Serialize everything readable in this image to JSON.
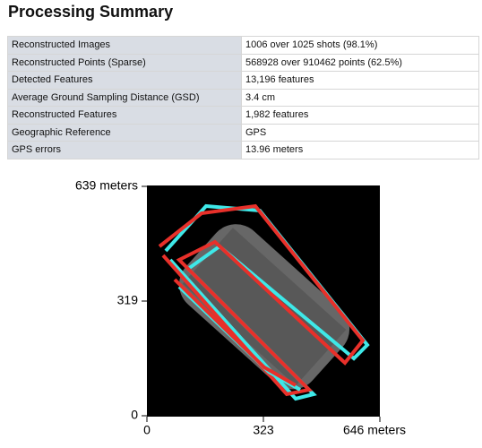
{
  "header": {
    "title": "Processing Summary"
  },
  "table": {
    "rows": [
      [
        "Reconstructed Images",
        "1006 over 1025 shots (98.1%)"
      ],
      [
        "Reconstructed Points (Sparse)",
        "568928 over 910462 points (62.5%)"
      ],
      [
        "Detected Features",
        "13,196 features"
      ],
      [
        "Average Ground Sampling Distance (GSD)",
        "3.4 cm"
      ],
      [
        "Reconstructed Features",
        "1,982 features"
      ],
      [
        "Geographic Reference",
        "GPS"
      ],
      [
        "GPS errors",
        "13.96 meters"
      ]
    ]
  },
  "figure": {
    "y_labels": [
      "639 meters",
      "319",
      "0"
    ],
    "x_labels": [
      "0",
      "323",
      "646 meters"
    ]
  }
}
